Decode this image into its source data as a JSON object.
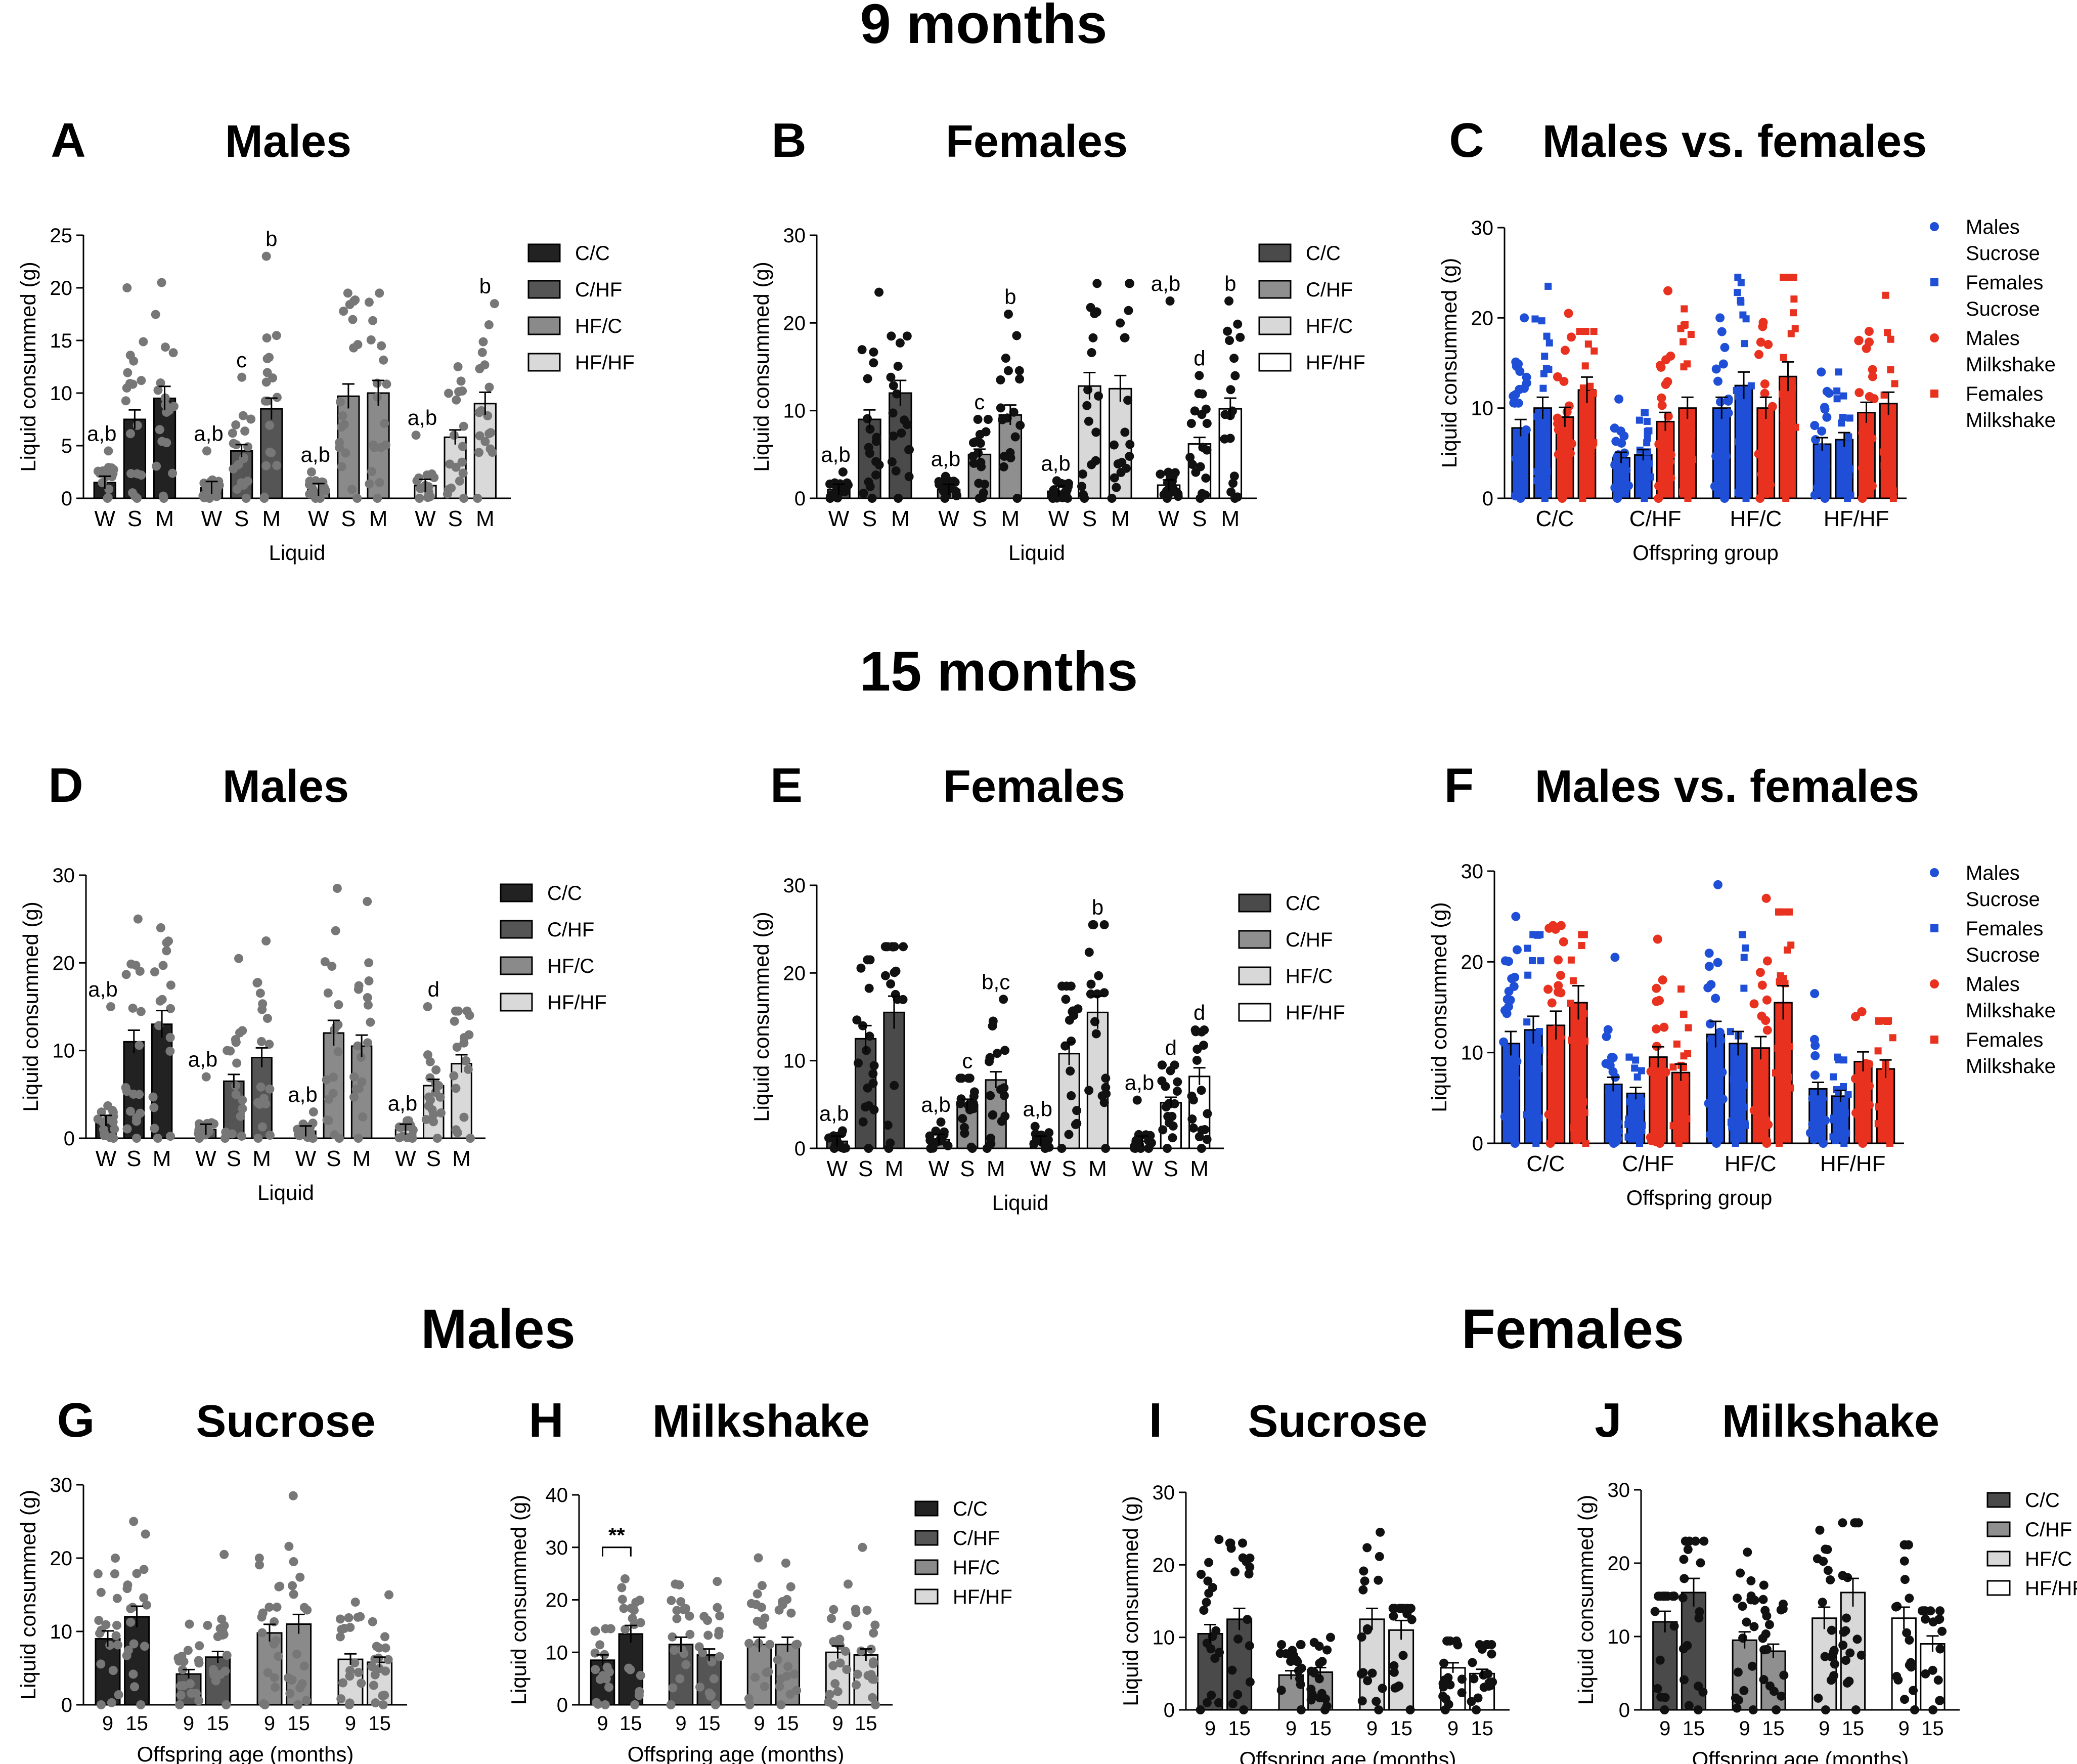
{
  "figure": {
    "section_titles": {
      "months9": "9 months",
      "months15": "15 months",
      "males": "Males",
      "females": "Females"
    },
    "legend_groups": [
      "C/C",
      "C/HF",
      "HF/C",
      "HF/HF"
    ],
    "legend_mf": [
      "Males Sucrose",
      "Females Sucrose",
      "Males Milkshake",
      "Females Milkshake"
    ]
  },
  "colors": {
    "males_dot": "#777777",
    "females_dot": "#111111",
    "blue": "#1f4fd6",
    "red": "#e8321f",
    "group_fill_males": [
      "#222222",
      "#555555",
      "#8a8a8a",
      "#d9d9d9"
    ],
    "group_fill_females": [
      "#4a4a4a",
      "#8f8f8f",
      "#d8d8d8",
      "#ffffff"
    ]
  },
  "chart_data": [
    {
      "id": "A",
      "label": "A",
      "title": "Males",
      "type": "bar",
      "ylabel": "Liquid consummed (g)",
      "xlabel": "Liquid",
      "ylim": [
        0,
        25
      ],
      "yticks": [
        0,
        5,
        10,
        15,
        20,
        25
      ],
      "groups": [
        "C/C",
        "C/HF",
        "HF/C",
        "HF/HF"
      ],
      "liquids": [
        "W",
        "S",
        "M"
      ],
      "values": [
        [
          1.5,
          7.5,
          9.5
        ],
        [
          1.0,
          4.5,
          8.5
        ],
        [
          0.8,
          9.7,
          10.0
        ],
        [
          1.2,
          5.8,
          9.0
        ]
      ],
      "ymax_points": [
        [
          4.5,
          20.0,
          20.5
        ],
        [
          4.5,
          11.5,
          23.0
        ],
        [
          2.5,
          19.5,
          19.5
        ],
        [
          6.0,
          12.5,
          18.5
        ]
      ],
      "annotations": [
        [
          "a,b",
          "",
          ""
        ],
        [
          "a,b",
          "c",
          "b"
        ],
        [
          "a,b",
          "",
          ""
        ],
        [
          "a,b",
          "",
          "b"
        ]
      ]
    },
    {
      "id": "B",
      "label": "B",
      "title": "Females",
      "type": "bar",
      "ylabel": "Liquid consummed (g)",
      "xlabel": "Liquid",
      "ylim": [
        0,
        30
      ],
      "yticks": [
        0,
        10,
        20,
        30
      ],
      "groups": [
        "C/C",
        "C/HF",
        "HF/C",
        "HF/HF"
      ],
      "liquids": [
        "W",
        "S",
        "M"
      ],
      "values": [
        [
          1.0,
          9.0,
          12.0
        ],
        [
          1.0,
          5.0,
          9.5
        ],
        [
          0.8,
          12.8,
          12.5
        ],
        [
          1.5,
          6.2,
          10.2
        ]
      ],
      "ymax_points": [
        [
          3.0,
          23.5,
          18.5
        ],
        [
          2.5,
          9.0,
          21.0
        ],
        [
          2.0,
          24.5,
          24.5
        ],
        [
          22.5,
          14.0,
          22.5
        ]
      ],
      "annotations": [
        [
          "a,b",
          "",
          ""
        ],
        [
          "a,b",
          "c",
          "b"
        ],
        [
          "a,b",
          "",
          ""
        ],
        [
          "a,b",
          "d",
          "b"
        ]
      ]
    },
    {
      "id": "C",
      "label": "C",
      "title": "Males vs. females",
      "type": "bar",
      "ylabel": "Liquid consummed (g)",
      "xlabel": "Offspring group",
      "ylim": [
        0,
        30
      ],
      "yticks": [
        0,
        10,
        20,
        30
      ],
      "categories": [
        "C/C",
        "C/HF",
        "HF/C",
        "HF/HF"
      ],
      "series": [
        {
          "name": "Males Sucrose",
          "values": [
            7.8,
            4.5,
            10.0,
            6.0
          ],
          "max": [
            20.0,
            11.0,
            20.0,
            14.0
          ]
        },
        {
          "name": "Females Sucrose",
          "values": [
            10.0,
            4.8,
            12.5,
            6.5
          ],
          "max": [
            23.5,
            9.5,
            24.5,
            14.0
          ]
        },
        {
          "name": "Males Milkshake",
          "values": [
            9.0,
            8.5,
            10.0,
            9.5
          ],
          "max": [
            20.5,
            23.0,
            19.5,
            18.5
          ]
        },
        {
          "name": "Females Milkshake",
          "values": [
            12.0,
            10.0,
            13.5,
            10.5
          ],
          "max": [
            18.5,
            21.0,
            24.5,
            22.5
          ]
        }
      ]
    },
    {
      "id": "D",
      "label": "D",
      "title": "Males",
      "type": "bar",
      "ylabel": "Liquid consummed (g)",
      "xlabel": "Liquid",
      "ylim": [
        0,
        30
      ],
      "yticks": [
        0,
        10,
        20,
        30
      ],
      "groups": [
        "C/C",
        "C/HF",
        "HF/C",
        "HF/HF"
      ],
      "liquids": [
        "W",
        "S",
        "M"
      ],
      "values": [
        [
          2.0,
          11.0,
          13.0
        ],
        [
          1.0,
          6.5,
          9.2
        ],
        [
          0.8,
          12.0,
          10.5
        ],
        [
          1.0,
          6.0,
          8.5
        ]
      ],
      "ymax_points": [
        [
          15.0,
          25.0,
          24.0
        ],
        [
          7.0,
          20.5,
          22.5
        ],
        [
          3.0,
          28.5,
          27.0
        ],
        [
          2.0,
          15.0,
          14.5
        ]
      ],
      "annotations": [
        [
          "a,b",
          "",
          ""
        ],
        [
          "a,b",
          "",
          ""
        ],
        [
          "a,b",
          "",
          ""
        ],
        [
          "a,b",
          "d",
          ""
        ]
      ]
    },
    {
      "id": "E",
      "label": "E",
      "title": "Females",
      "type": "bar",
      "ylabel": "Liquid consummed (g)",
      "xlabel": "Liquid",
      "ylim": [
        0,
        30
      ],
      "yticks": [
        0,
        10,
        20,
        30
      ],
      "groups": [
        "C/C",
        "C/HF",
        "HF/C",
        "HF/HF"
      ],
      "liquids": [
        "W",
        "S",
        "M"
      ],
      "values": [
        [
          0.8,
          12.5,
          15.5
        ],
        [
          1.0,
          5.0,
          7.8
        ],
        [
          0.8,
          10.8,
          15.5
        ],
        [
          0.8,
          5.2,
          8.2
        ]
      ],
      "ymax_points": [
        [
          2.0,
          21.5,
          23.0
        ],
        [
          3.0,
          8.0,
          17.0
        ],
        [
          2.5,
          18.5,
          25.5
        ],
        [
          5.5,
          9.5,
          13.5
        ]
      ],
      "annotations": [
        [
          "a,b",
          "",
          ""
        ],
        [
          "a,b",
          "c",
          "b,c"
        ],
        [
          "a,b",
          "",
          "b"
        ],
        [
          "a,b",
          "d",
          "d"
        ]
      ]
    },
    {
      "id": "F",
      "label": "F",
      "title": "Males vs. females",
      "type": "bar",
      "ylabel": "Liquid consummed (g)",
      "xlabel": "Offspring group",
      "ylim": [
        0,
        30
      ],
      "yticks": [
        0,
        10,
        20,
        30
      ],
      "categories": [
        "C/C",
        "C/HF",
        "HF/C",
        "HF/HF"
      ],
      "series": [
        {
          "name": "Males Sucrose",
          "values": [
            11.0,
            6.5,
            12.0,
            6.0
          ],
          "max": [
            25.0,
            20.5,
            28.5,
            16.5
          ]
        },
        {
          "name": "Females Sucrose",
          "values": [
            12.5,
            5.5,
            11.0,
            5.2
          ],
          "max": [
            23.0,
            9.5,
            23.0,
            9.5
          ]
        },
        {
          "name": "Males Milkshake",
          "values": [
            13.0,
            9.5,
            10.5,
            9.0
          ],
          "max": [
            24.0,
            22.5,
            27.0,
            14.5
          ]
        },
        {
          "name": "Females Milkshake",
          "values": [
            15.5,
            7.8,
            15.5,
            8.2
          ],
          "max": [
            23.0,
            17.0,
            25.5,
            13.5
          ]
        }
      ]
    },
    {
      "id": "G",
      "label": "G",
      "title": "Sucrose",
      "type": "bar",
      "ylabel": "Liquid consummed (g)",
      "xlabel": "Offspring age (months)",
      "ylim": [
        0,
        30
      ],
      "yticks": [
        0,
        10,
        20,
        30
      ],
      "groups": [
        "C/C",
        "C/HF",
        "HF/C",
        "HF/HF"
      ],
      "ages": [
        "9",
        "15"
      ],
      "values": [
        [
          9.0,
          12.0
        ],
        [
          4.2,
          6.5
        ],
        [
          9.8,
          11.0
        ],
        [
          6.2,
          5.8
        ]
      ],
      "ymax_points": [
        [
          20.0,
          25.0
        ],
        [
          11.0,
          20.5
        ],
        [
          20.0,
          28.5
        ],
        [
          14.0,
          15.0
        ]
      ]
    },
    {
      "id": "H",
      "label": "H",
      "title": "Milkshake",
      "type": "bar",
      "ylabel": "Liquid consummed (g)",
      "xlabel": "Offspring age (months)",
      "ylim": [
        0,
        40
      ],
      "yticks": [
        0,
        10,
        20,
        30,
        40
      ],
      "groups": [
        "C/C",
        "C/HF",
        "HF/C",
        "HF/HF"
      ],
      "ages": [
        "9",
        "15"
      ],
      "values": [
        [
          8.5,
          13.5
        ],
        [
          11.5,
          9.5
        ],
        [
          11.5,
          11.5
        ],
        [
          10.0,
          9.5
        ]
      ],
      "ymax_points": [
        [
          14.5,
          24.0
        ],
        [
          23.0,
          23.5
        ],
        [
          28.0,
          27.0
        ],
        [
          23.0,
          30.0
        ]
      ],
      "significance": {
        "group": "C/C",
        "label": "**"
      }
    },
    {
      "id": "I",
      "label": "I",
      "title": "Sucrose",
      "type": "bar",
      "ylabel": "Liquid consummed (g)",
      "xlabel": "Offspring age (months)",
      "ylim": [
        0,
        30
      ],
      "yticks": [
        0,
        10,
        20,
        30
      ],
      "groups": [
        "C/C",
        "C/HF",
        "HF/C",
        "HF/HF"
      ],
      "ages": [
        "9",
        "15"
      ],
      "values": [
        [
          10.5,
          12.5
        ],
        [
          4.8,
          5.2
        ],
        [
          12.5,
          11.0
        ],
        [
          5.8,
          5.0
        ]
      ],
      "ymax_points": [
        [
          23.5,
          23.0
        ],
        [
          9.0,
          10.0
        ],
        [
          24.5,
          14.0
        ],
        [
          9.5,
          9.0
        ]
      ]
    },
    {
      "id": "J",
      "label": "J",
      "title": "Milkshake",
      "type": "bar",
      "ylabel": "Liquid consummed (g)",
      "xlabel": "Offspring age (months)",
      "ylim": [
        0,
        30
      ],
      "yticks": [
        0,
        10,
        20,
        30
      ],
      "groups": [
        "C/C",
        "C/HF",
        "HF/C",
        "HF/HF"
      ],
      "ages": [
        "9",
        "15"
      ],
      "values": [
        [
          12.0,
          16.0
        ],
        [
          9.5,
          8.0
        ],
        [
          12.5,
          16.0
        ],
        [
          12.5,
          9.0
        ]
      ],
      "ymax_points": [
        [
          15.5,
          23.0
        ],
        [
          21.5,
          17.0
        ],
        [
          24.5,
          25.5
        ],
        [
          22.5,
          13.5
        ]
      ]
    }
  ]
}
